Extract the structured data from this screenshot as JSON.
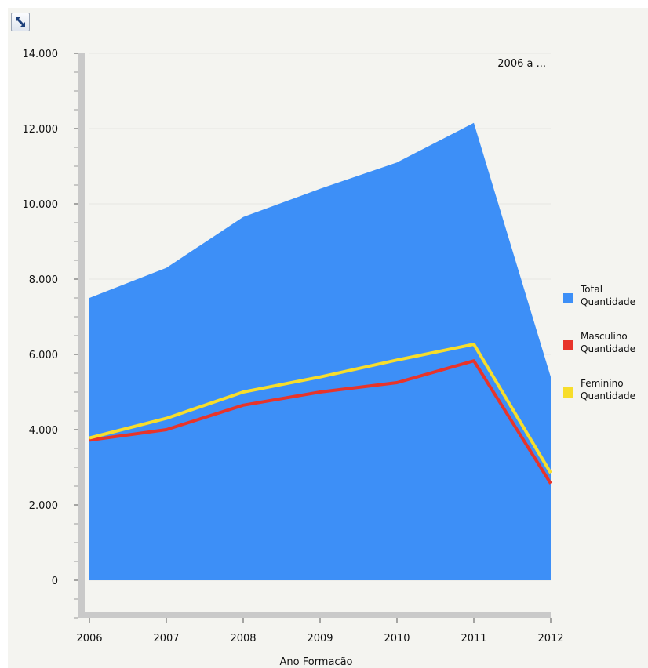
{
  "toolbar": {
    "toggle_icon": "collapse-expand-icon"
  },
  "chart_data": {
    "type": "area",
    "title": "2006 a ...",
    "xlabel": "Ano Formacão",
    "ylabel": "",
    "categories": [
      "2006",
      "2007",
      "2008",
      "2009",
      "2010",
      "2011",
      "2012"
    ],
    "ylim": [
      -1000,
      14000
    ],
    "yticks": [
      0,
      2000,
      4000,
      6000,
      8000,
      10000,
      12000,
      14000
    ],
    "ytick_labels": [
      "0",
      "2.000",
      "4.000",
      "6.000",
      "8.000",
      "10.000",
      "12.000",
      "14.000"
    ],
    "grid": true,
    "legend": "right",
    "series": [
      {
        "name": "Total Quantidade",
        "legend_lines": [
          "Total",
          "Quantidade"
        ],
        "style": "area",
        "color": "#3d8ff7",
        "values": [
          7500,
          8300,
          9650,
          10400,
          11100,
          12150,
          5400
        ]
      },
      {
        "name": "Masculino Quantidade",
        "legend_lines": [
          "Masculino",
          "Quantidade"
        ],
        "style": "line",
        "color": "#e8342a",
        "values": [
          3720,
          4000,
          4650,
          5000,
          5250,
          5830,
          2570
        ]
      },
      {
        "name": "Feminino Quantidade",
        "legend_lines": [
          "Feminino",
          "Quantidade"
        ],
        "style": "line",
        "color": "#f7dd2b",
        "values": [
          3780,
          4300,
          5000,
          5400,
          5850,
          6270,
          2850
        ]
      }
    ]
  }
}
